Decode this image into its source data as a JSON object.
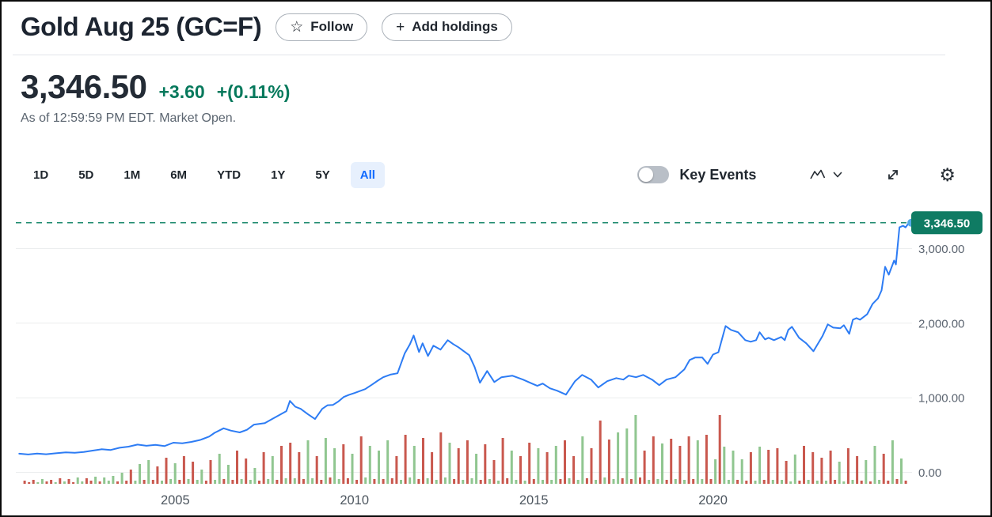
{
  "header": {
    "title": "Gold Aug 25 (GC=F)",
    "follow": {
      "label": "Follow",
      "icon": "star-icon"
    },
    "add_holdings": {
      "label": "Add holdings",
      "icon": "plus-icon"
    }
  },
  "quote": {
    "price": "3,346.50",
    "change": "+3.60",
    "change_pct": "+(0.11%)",
    "as_of": "As of 12:59:59 PM EDT. Market Open.",
    "up_color": "#06795c"
  },
  "toolbar": {
    "ranges": [
      "1D",
      "5D",
      "1M",
      "6M",
      "YTD",
      "1Y",
      "5Y",
      "All"
    ],
    "active": "All",
    "active_color": "#0f69ff",
    "key_events": {
      "label": "Key Events",
      "enabled": false
    },
    "icons": [
      "line-chart-icon",
      "chevron-down-icon",
      "expand-icon",
      "gear-icon"
    ]
  },
  "chart_data": {
    "type": "line",
    "title": "Gold Aug 25 (GC=F) price history, All range",
    "x_range": [
      2000.6,
      2025.55
    ],
    "x_tick_values": [
      2005,
      2010,
      2015,
      2020
    ],
    "x_ticks": [
      "2005",
      "2010",
      "2015",
      "2020"
    ],
    "y_tick_values": [
      3000,
      2000,
      1000,
      0
    ],
    "y_ticks": [
      "3,000.00",
      "2,000.00",
      "1,000.00",
      "0.00"
    ],
    "ylim": [
      0,
      3680
    ],
    "grid": true,
    "current_price": 3346.5,
    "current_price_label": "3,346.50",
    "colors": {
      "line": "#2d7cf4",
      "marker": "#54a9e7",
      "badge": "#0f7b63",
      "badge_text": "#ffffff",
      "dashed": "#1d8a6e",
      "grid": "#ebedee",
      "axis_text": "#5b6470",
      "x_axis_text": "#4d565f",
      "vol_up": "#90c690",
      "vol_down": "#c9584e"
    },
    "line": {
      "points": [
        [
          2000.65,
          250
        ],
        [
          2000.9,
          240
        ],
        [
          2001.15,
          252
        ],
        [
          2001.4,
          243
        ],
        [
          2001.7,
          258
        ],
        [
          2001.95,
          268
        ],
        [
          2002.2,
          262
        ],
        [
          2002.45,
          272
        ],
        [
          2002.7,
          292
        ],
        [
          2002.95,
          310
        ],
        [
          2003.2,
          300
        ],
        [
          2003.45,
          330
        ],
        [
          2003.7,
          345
        ],
        [
          2003.95,
          372
        ],
        [
          2004.2,
          356
        ],
        [
          2004.45,
          368
        ],
        [
          2004.7,
          352
        ],
        [
          2004.95,
          398
        ],
        [
          2005.2,
          390
        ],
        [
          2005.45,
          408
        ],
        [
          2005.7,
          435
        ],
        [
          2005.95,
          480
        ],
        [
          2006.1,
          530
        ],
        [
          2006.35,
          590
        ],
        [
          2006.55,
          560
        ],
        [
          2006.8,
          535
        ],
        [
          2007.0,
          570
        ],
        [
          2007.2,
          640
        ],
        [
          2007.5,
          660
        ],
        [
          2007.7,
          714
        ],
        [
          2007.95,
          780
        ],
        [
          2008.1,
          820
        ],
        [
          2008.2,
          957
        ],
        [
          2008.35,
          880
        ],
        [
          2008.5,
          851
        ],
        [
          2008.7,
          780
        ],
        [
          2008.9,
          714
        ],
        [
          2009.1,
          851
        ],
        [
          2009.25,
          900
        ],
        [
          2009.4,
          904
        ],
        [
          2009.55,
          950
        ],
        [
          2009.7,
          1010
        ],
        [
          2009.85,
          1040
        ],
        [
          2010.0,
          1063
        ],
        [
          2010.15,
          1090
        ],
        [
          2010.3,
          1116
        ],
        [
          2010.5,
          1180
        ],
        [
          2010.65,
          1230
        ],
        [
          2010.8,
          1275
        ],
        [
          2011.0,
          1310
        ],
        [
          2011.2,
          1328
        ],
        [
          2011.4,
          1592
        ],
        [
          2011.55,
          1720
        ],
        [
          2011.65,
          1835
        ],
        [
          2011.8,
          1613
        ],
        [
          2011.9,
          1730
        ],
        [
          2012.05,
          1560
        ],
        [
          2012.2,
          1698
        ],
        [
          2012.4,
          1645
        ],
        [
          2012.6,
          1772
        ],
        [
          2012.75,
          1720
        ],
        [
          2012.9,
          1677
        ],
        [
          2013.05,
          1624
        ],
        [
          2013.2,
          1571
        ],
        [
          2013.35,
          1412
        ],
        [
          2013.5,
          1201
        ],
        [
          2013.7,
          1359
        ],
        [
          2013.9,
          1211
        ],
        [
          2014.1,
          1275
        ],
        [
          2014.4,
          1296
        ],
        [
          2014.7,
          1243
        ],
        [
          2014.95,
          1190
        ],
        [
          2015.1,
          1160
        ],
        [
          2015.25,
          1190
        ],
        [
          2015.45,
          1127
        ],
        [
          2015.65,
          1095
        ],
        [
          2015.9,
          1042
        ],
        [
          2016.15,
          1222
        ],
        [
          2016.35,
          1306
        ],
        [
          2016.6,
          1243
        ],
        [
          2016.8,
          1137
        ],
        [
          2017.05,
          1222
        ],
        [
          2017.3,
          1264
        ],
        [
          2017.5,
          1243
        ],
        [
          2017.65,
          1296
        ],
        [
          2017.85,
          1275
        ],
        [
          2018.05,
          1306
        ],
        [
          2018.3,
          1243
        ],
        [
          2018.5,
          1169
        ],
        [
          2018.7,
          1243
        ],
        [
          2018.95,
          1275
        ],
        [
          2019.2,
          1381
        ],
        [
          2019.35,
          1507
        ],
        [
          2019.5,
          1539
        ],
        [
          2019.7,
          1539
        ],
        [
          2019.85,
          1454
        ],
        [
          2020.0,
          1580
        ],
        [
          2020.15,
          1610
        ],
        [
          2020.35,
          1962
        ],
        [
          2020.5,
          1910
        ],
        [
          2020.7,
          1878
        ],
        [
          2020.9,
          1772
        ],
        [
          2021.05,
          1751
        ],
        [
          2021.2,
          1772
        ],
        [
          2021.3,
          1878
        ],
        [
          2021.45,
          1783
        ],
        [
          2021.55,
          1804
        ],
        [
          2021.7,
          1772
        ],
        [
          2021.9,
          1815
        ],
        [
          2022.0,
          1772
        ],
        [
          2022.1,
          1910
        ],
        [
          2022.2,
          1952
        ],
        [
          2022.4,
          1804
        ],
        [
          2022.6,
          1730
        ],
        [
          2022.8,
          1624
        ],
        [
          2023.05,
          1825
        ],
        [
          2023.2,
          1984
        ],
        [
          2023.35,
          1941
        ],
        [
          2023.55,
          1931
        ],
        [
          2023.65,
          1973
        ],
        [
          2023.8,
          1857
        ],
        [
          2023.9,
          2047
        ],
        [
          2024.0,
          2068
        ],
        [
          2024.1,
          2047
        ],
        [
          2024.3,
          2121
        ],
        [
          2024.45,
          2259
        ],
        [
          2024.6,
          2333
        ],
        [
          2024.7,
          2439
        ],
        [
          2024.8,
          2756
        ],
        [
          2024.9,
          2650
        ],
        [
          2025.05,
          2841
        ],
        [
          2025.1,
          2788
        ],
        [
          2025.2,
          3285
        ],
        [
          2025.3,
          3306
        ],
        [
          2025.37,
          3285
        ],
        [
          2025.45,
          3338
        ],
        [
          2025.53,
          3346.5
        ]
      ]
    },
    "volume": {
      "t0": 2000.8,
      "dt": 0.1235,
      "heights": [
        4,
        2,
        5,
        2,
        6,
        3,
        5,
        2,
        7,
        3,
        6,
        2,
        8,
        3,
        7,
        4,
        9,
        3,
        8,
        4,
        10,
        3,
        14,
        4,
        18,
        4,
        25,
        5,
        30,
        5,
        22,
        4,
        33,
        6,
        26,
        5,
        35,
        6,
        28,
        5,
        18,
        4,
        30,
        5,
        38,
        6,
        24,
        5,
        42,
        6,
        32,
        5,
        20,
        4,
        40,
        6,
        35,
        5,
        48,
        7,
        52,
        7,
        40,
        6,
        55,
        7,
        35,
        5,
        58,
        8,
        45,
        6,
        50,
        7,
        38,
        5,
        60,
        8,
        48,
        6,
        42,
        6,
        55,
        7,
        35,
        5,
        62,
        8,
        48,
        6,
        58,
        7,
        40,
        5,
        65,
        8,
        52,
        6,
        45,
        5,
        55,
        7,
        38,
        5,
        50,
        6,
        30,
        4,
        58,
        7,
        42,
        5,
        35,
        4,
        52,
        6,
        45,
        5,
        40,
        5,
        48,
        6,
        55,
        7,
        35,
        5,
        60,
        7,
        45,
        5,
        80,
        8,
        56,
        6,
        65,
        7,
        70,
        6,
        87,
        8,
        42,
        5,
        60,
        6,
        51,
        5,
        57,
        6,
        48,
        5,
        60,
        6,
        55,
        6,
        62,
        6,
        31,
        87,
        47,
        5,
        42,
        5,
        31,
        4,
        40,
        4,
        47,
        5,
        43,
        5,
        45,
        5,
        29,
        3,
        37,
        4,
        48,
        5,
        40,
        4,
        33,
        4,
        42,
        5,
        28,
        3,
        45,
        5,
        35,
        4,
        30,
        3,
        48,
        5,
        38,
        4,
        55,
        6,
        32,
        4
      ],
      "colors": "rrrggrrgrgrrggrrgrgggrgrrggrgrrgrggrrgrggrrggrgrrgrggrrggrrgrgrrggrrgrggrrgrrggrgrgrrgrggrrgrgrggrrgrggrrgrgrrggrgrrggrggrrgrggrrgrgrggrgrgrrgrggrrgrgrrggrrgrgggrgrrggrrgrgrggrrgrgrgrrggrgrrgrggrrgrgr"
    }
  }
}
